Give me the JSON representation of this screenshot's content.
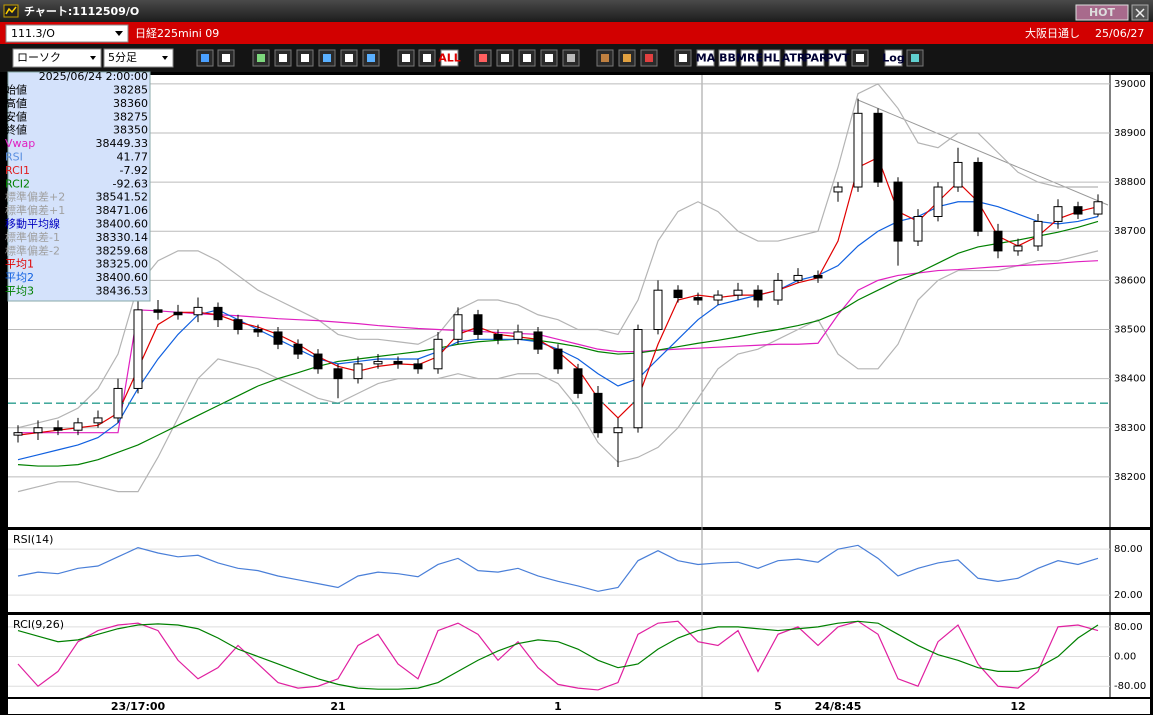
{
  "window": {
    "title": "チャート:1112509/O",
    "hot_button": "HOT"
  },
  "header": {
    "symbol": "111.3/O",
    "name": "日経225mini 09",
    "session": "大阪日通し",
    "date": "25/06/27"
  },
  "toolbar": {
    "chart_style": "ローソク",
    "interval": "5分足",
    "buttons": [
      "ALL",
      "MA",
      "BB",
      "MRE",
      "HL",
      "ATR",
      "PAR",
      "PVT",
      "Log"
    ]
  },
  "info_panel": {
    "datetime": "2025/06/24 2:00:00",
    "rows": [
      {
        "label": "始値",
        "value": "38285",
        "color": "#000000"
      },
      {
        "label": "高値",
        "value": "38360",
        "color": "#000000"
      },
      {
        "label": "安値",
        "value": "38275",
        "color": "#000000"
      },
      {
        "label": "終値",
        "value": "38350",
        "color": "#000000"
      },
      {
        "label": "Vwap",
        "value": "38449.33",
        "color": "#e020c0"
      },
      {
        "label": "RSI",
        "value": "41.77",
        "color": "#5a8fe0"
      },
      {
        "label": "RCI1",
        "value": "-7.92",
        "color": "#e02020"
      },
      {
        "label": "RCI2",
        "value": "-92.63",
        "color": "#008000"
      },
      {
        "label": "標準偏差+2",
        "value": "38541.52",
        "color": "#a0a0a0"
      },
      {
        "label": "標準偏差+1",
        "value": "38471.06",
        "color": "#a0a0a0"
      },
      {
        "label": "移動平均線",
        "value": "38400.60",
        "color": "#0000c0"
      },
      {
        "label": "標準偏差-1",
        "value": "38330.14",
        "color": "#a0a0a0"
      },
      {
        "label": "標準偏差-2",
        "value": "38259.68",
        "color": "#a0a0a0"
      },
      {
        "label": "平均1",
        "value": "38325.00",
        "color": "#e00000"
      },
      {
        "label": "平均2",
        "value": "38400.60",
        "color": "#1060e0"
      },
      {
        "label": "平均3",
        "value": "38436.53",
        "color": "#008000"
      }
    ]
  },
  "chart_data": [
    {
      "type": "candlestick",
      "categories": [
        null,
        null,
        null,
        null,
        null,
        null,
        "23/17:00",
        null,
        null,
        null,
        null,
        null,
        null,
        null,
        null,
        null,
        "21",
        null,
        null,
        null,
        null,
        null,
        null,
        null,
        null,
        null,
        null,
        "1",
        null,
        null,
        null,
        null,
        null,
        null,
        null,
        null,
        null,
        null,
        "5",
        null,
        null,
        "24/8:45",
        null,
        null,
        null,
        null,
        null,
        null,
        null,
        null,
        "12",
        null,
        null,
        null,
        null
      ],
      "open": [
        38285,
        38290,
        38300,
        38295,
        38310,
        38320,
        38380,
        38540,
        38535,
        38530,
        38545,
        38520,
        38500,
        38495,
        38470,
        38450,
        38420,
        38400,
        38430,
        38435,
        38430,
        38420,
        38480,
        38530,
        38490,
        38480,
        38495,
        38460,
        38420,
        38370,
        38290,
        38300,
        38500,
        38580,
        38565,
        38560,
        38570,
        38580,
        38560,
        38600,
        38610,
        38780,
        38790,
        38940,
        38800,
        38680,
        38730,
        38790,
        38840,
        38700,
        38660,
        38670,
        38720,
        38750,
        38735
      ],
      "high": [
        38305,
        38315,
        38315,
        38320,
        38335,
        38400,
        38570,
        38560,
        38550,
        38565,
        38555,
        38530,
        38510,
        38505,
        38480,
        38460,
        38430,
        38445,
        38450,
        38445,
        38440,
        38495,
        38545,
        38540,
        38500,
        38510,
        38505,
        38470,
        38430,
        38385,
        38320,
        38510,
        38600,
        38590,
        38575,
        38580,
        38595,
        38590,
        38615,
        38625,
        38620,
        38800,
        38970,
        38950,
        38810,
        38745,
        38800,
        38870,
        38850,
        38715,
        38685,
        38735,
        38765,
        38760,
        38775
      ],
      "low": [
        38270,
        38275,
        38285,
        38285,
        38300,
        38310,
        38370,
        38520,
        38520,
        38515,
        38505,
        38490,
        38485,
        38460,
        38440,
        38410,
        38360,
        38390,
        38420,
        38420,
        38410,
        38410,
        38470,
        38480,
        38470,
        38470,
        38450,
        38410,
        38360,
        38280,
        38220,
        38290,
        38490,
        38555,
        38550,
        38550,
        38560,
        38545,
        38550,
        38595,
        38595,
        38760,
        38780,
        38790,
        38630,
        38670,
        38720,
        38780,
        38690,
        38645,
        38650,
        38660,
        38705,
        38725,
        38730
      ],
      "close": [
        38290,
        38300,
        38295,
        38310,
        38320,
        38380,
        38540,
        38535,
        38530,
        38545,
        38520,
        38500,
        38495,
        38470,
        38450,
        38420,
        38400,
        38430,
        38435,
        38430,
        38420,
        38480,
        38530,
        38490,
        38480,
        38495,
        38460,
        38420,
        38370,
        38290,
        38300,
        38500,
        38580,
        38565,
        38560,
        38570,
        38580,
        38560,
        38600,
        38610,
        38605,
        38790,
        38940,
        38800,
        38680,
        38730,
        38790,
        38840,
        38700,
        38660,
        38670,
        38720,
        38750,
        38735,
        38760
      ],
      "up_color": "#ffffff",
      "down_color": "#000000",
      "series": [
        {
          "color": "#b4b4b4",
          "values": [
            38300,
            38310,
            38320,
            38340,
            38380,
            38450,
            38590,
            38640,
            38660,
            38660,
            38640,
            38610,
            38580,
            38560,
            38540,
            38520,
            38490,
            38480,
            38480,
            38475,
            38470,
            38490,
            38540,
            38560,
            38560,
            38550,
            38530,
            38520,
            38500,
            38500,
            38490,
            38560,
            38680,
            38740,
            38760,
            38740,
            38700,
            38680,
            38680,
            38690,
            38700,
            38830,
            38980,
            39000,
            38950,
            38880,
            38870,
            38900,
            38900,
            38860,
            38820,
            38800,
            38790,
            38790,
            38790
          ]
        },
        {
          "color": "#b4b4b4",
          "values": [
            38170,
            38180,
            38190,
            38190,
            38180,
            38170,
            38170,
            38240,
            38320,
            38400,
            38440,
            38430,
            38420,
            38400,
            38380,
            38360,
            38350,
            38370,
            38390,
            38400,
            38400,
            38400,
            38410,
            38400,
            38400,
            38410,
            38410,
            38390,
            38340,
            38270,
            38230,
            38240,
            38260,
            38300,
            38360,
            38420,
            38450,
            38460,
            38480,
            38500,
            38520,
            38450,
            38420,
            38420,
            38470,
            38560,
            38600,
            38620,
            38620,
            38620,
            38630,
            38640,
            38640,
            38650,
            38660
          ]
        },
        {
          "color": "#e020c0",
          "values": [
            38290,
            38290,
            38290,
            38290,
            38290,
            38290,
            38540,
            38538,
            38535,
            38532,
            38530,
            38528,
            38525,
            38522,
            38520,
            38518,
            38515,
            38512,
            38508,
            38505,
            38502,
            38500,
            38498,
            38496,
            38494,
            38492,
            38490,
            38480,
            38470,
            38460,
            38455,
            38455,
            38458,
            38460,
            38462,
            38464,
            38466,
            38468,
            38470,
            38470,
            38472,
            38530,
            38580,
            38600,
            38610,
            38615,
            38620,
            38622,
            38625,
            38628,
            38630,
            38632,
            38635,
            38638,
            38640
          ]
        },
        {
          "color": "#008000",
          "values": [
            38225,
            38222,
            38222,
            38225,
            38235,
            38250,
            38265,
            38285,
            38305,
            38325,
            38345,
            38365,
            38385,
            38400,
            38412,
            38425,
            38435,
            38440,
            38445,
            38450,
            38455,
            38462,
            38470,
            38475,
            38478,
            38480,
            38478,
            38472,
            38465,
            38455,
            38450,
            38452,
            38458,
            38465,
            38472,
            38478,
            38485,
            38493,
            38500,
            38508,
            38518,
            38535,
            38560,
            38580,
            38600,
            38615,
            38635,
            38655,
            38668,
            38675,
            38682,
            38690,
            38698,
            38708,
            38720
          ]
        },
        {
          "color": "#1060e0",
          "values": [
            38235,
            38245,
            38255,
            38265,
            38280,
            38310,
            38380,
            38440,
            38490,
            38530,
            38540,
            38520,
            38500,
            38480,
            38460,
            38440,
            38430,
            38435,
            38440,
            38440,
            38440,
            38455,
            38475,
            38480,
            38480,
            38480,
            38475,
            38460,
            38440,
            38410,
            38385,
            38400,
            38440,
            38480,
            38520,
            38550,
            38560,
            38570,
            38580,
            38600,
            38610,
            38630,
            38670,
            38700,
            38720,
            38730,
            38750,
            38760,
            38760,
            38750,
            38735,
            38720,
            38715,
            38720,
            38730
          ]
        },
        {
          "color": "#e00000",
          "values": [
            38285,
            38290,
            38295,
            38300,
            38305,
            38330,
            38420,
            38510,
            38535,
            38535,
            38530,
            38515,
            38505,
            38490,
            38470,
            38445,
            38425,
            38415,
            38425,
            38430,
            38428,
            38445,
            38490,
            38505,
            38490,
            38485,
            38480,
            38455,
            38420,
            38360,
            38320,
            38360,
            38470,
            38560,
            38570,
            38565,
            38570,
            38570,
            38580,
            38595,
            38605,
            38680,
            38830,
            38850,
            38740,
            38720,
            38760,
            38800,
            38760,
            38690,
            38670,
            38690,
            38725,
            38740,
            38750
          ]
        }
      ],
      "reference_line": 38350,
      "reference_color": "#2a9d8f",
      "ylim": [
        38098,
        39018
      ],
      "yticks": [
        39000,
        38900,
        38800,
        38700,
        38600,
        38500,
        38400,
        38300,
        38200
      ],
      "grid": true
    },
    {
      "type": "line",
      "title": "RSI(14)",
      "series": [
        {
          "color": "#4a7fd8",
          "values": [
            45,
            50,
            48,
            55,
            58,
            70,
            82,
            75,
            70,
            72,
            62,
            55,
            52,
            45,
            40,
            35,
            30,
            45,
            50,
            48,
            44,
            60,
            68,
            52,
            50,
            55,
            45,
            38,
            32,
            25,
            30,
            65,
            78,
            65,
            60,
            62,
            63,
            55,
            65,
            67,
            63,
            80,
            85,
            68,
            45,
            55,
            62,
            66,
            42,
            38,
            42,
            55,
            65,
            60,
            68
          ]
        }
      ],
      "ylim": [
        -2,
        105
      ],
      "yticks": [
        {
          "value": 80,
          "label": "80.00"
        },
        {
          "value": 20,
          "label": "20.00"
        }
      ],
      "grid": true
    },
    {
      "type": "line",
      "title": "RCI(9,26)",
      "series": [
        {
          "color": "#e020a0",
          "values": [
            -20,
            -80,
            -40,
            40,
            70,
            85,
            90,
            70,
            -10,
            -60,
            -30,
            30,
            -20,
            -70,
            -85,
            -80,
            -60,
            30,
            60,
            -20,
            -60,
            70,
            90,
            60,
            -10,
            40,
            -30,
            -75,
            -85,
            -90,
            -70,
            60,
            90,
            95,
            40,
            30,
            70,
            -40,
            60,
            80,
            30,
            80,
            95,
            60,
            -60,
            -80,
            40,
            85,
            -20,
            -80,
            -85,
            -40,
            80,
            85,
            70
          ]
        },
        {
          "color": "#008000",
          "values": [
            70,
            55,
            40,
            45,
            60,
            75,
            85,
            88,
            85,
            75,
            50,
            20,
            0,
            -20,
            -40,
            -60,
            -75,
            -85,
            -88,
            -88,
            -85,
            -70,
            -40,
            -10,
            15,
            35,
            45,
            40,
            20,
            -10,
            -30,
            -20,
            20,
            50,
            70,
            80,
            80,
            75,
            70,
            75,
            80,
            90,
            95,
            90,
            60,
            30,
            5,
            -10,
            -30,
            -40,
            -40,
            -30,
            0,
            50,
            85
          ]
        }
      ],
      "ylim": [
        -109,
        112
      ],
      "yticks": [
        {
          "value": 80,
          "label": "80.00"
        },
        {
          "value": 0,
          "label": "0.00"
        },
        {
          "value": -80,
          "label": "-80.00"
        }
      ],
      "grid": true
    }
  ]
}
